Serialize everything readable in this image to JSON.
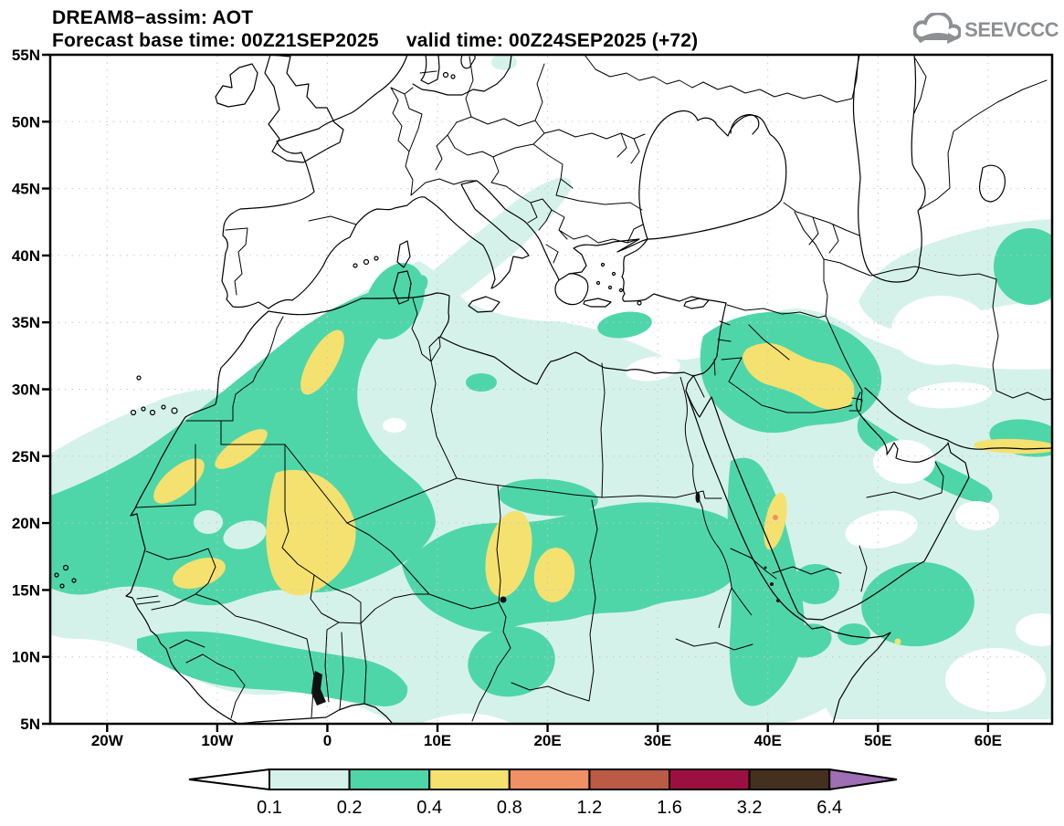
{
  "header": {
    "title": "DREAM8−assim: AOT",
    "subtitle": "Forecast base time: 00Z21SEP2025     valid time: 00Z24SEP2025 (+72)",
    "logo_text": "SEEVCCC"
  },
  "map": {
    "lat_labels": [
      "55N",
      "50N",
      "45N",
      "40N",
      "35N",
      "30N",
      "25N",
      "20N",
      "15N",
      "10N",
      "5N"
    ],
    "lon_labels": [
      "20W",
      "10W",
      "0",
      "10E",
      "20E",
      "30E",
      "40E",
      "50E",
      "60E"
    ]
  },
  "colorbar": {
    "labels": [
      "0.1",
      "0.2",
      "0.4",
      "0.8",
      "1.2",
      "1.6",
      "3.2",
      "6.4"
    ],
    "tick_values": [
      0.1,
      0.2,
      0.4,
      0.8,
      1.2,
      1.6,
      3.2,
      6.4
    ],
    "colors": [
      "#ffffff",
      "#d5f2ea",
      "#4fd6a8",
      "#f5e170",
      "#ef9065",
      "#bb5b45",
      "#9b1040",
      "#43301e",
      "#9e6fb4"
    ],
    "line_color": "#000000",
    "grid_color": "#c6c6c6",
    "logo_color": "#8d8f92"
  }
}
